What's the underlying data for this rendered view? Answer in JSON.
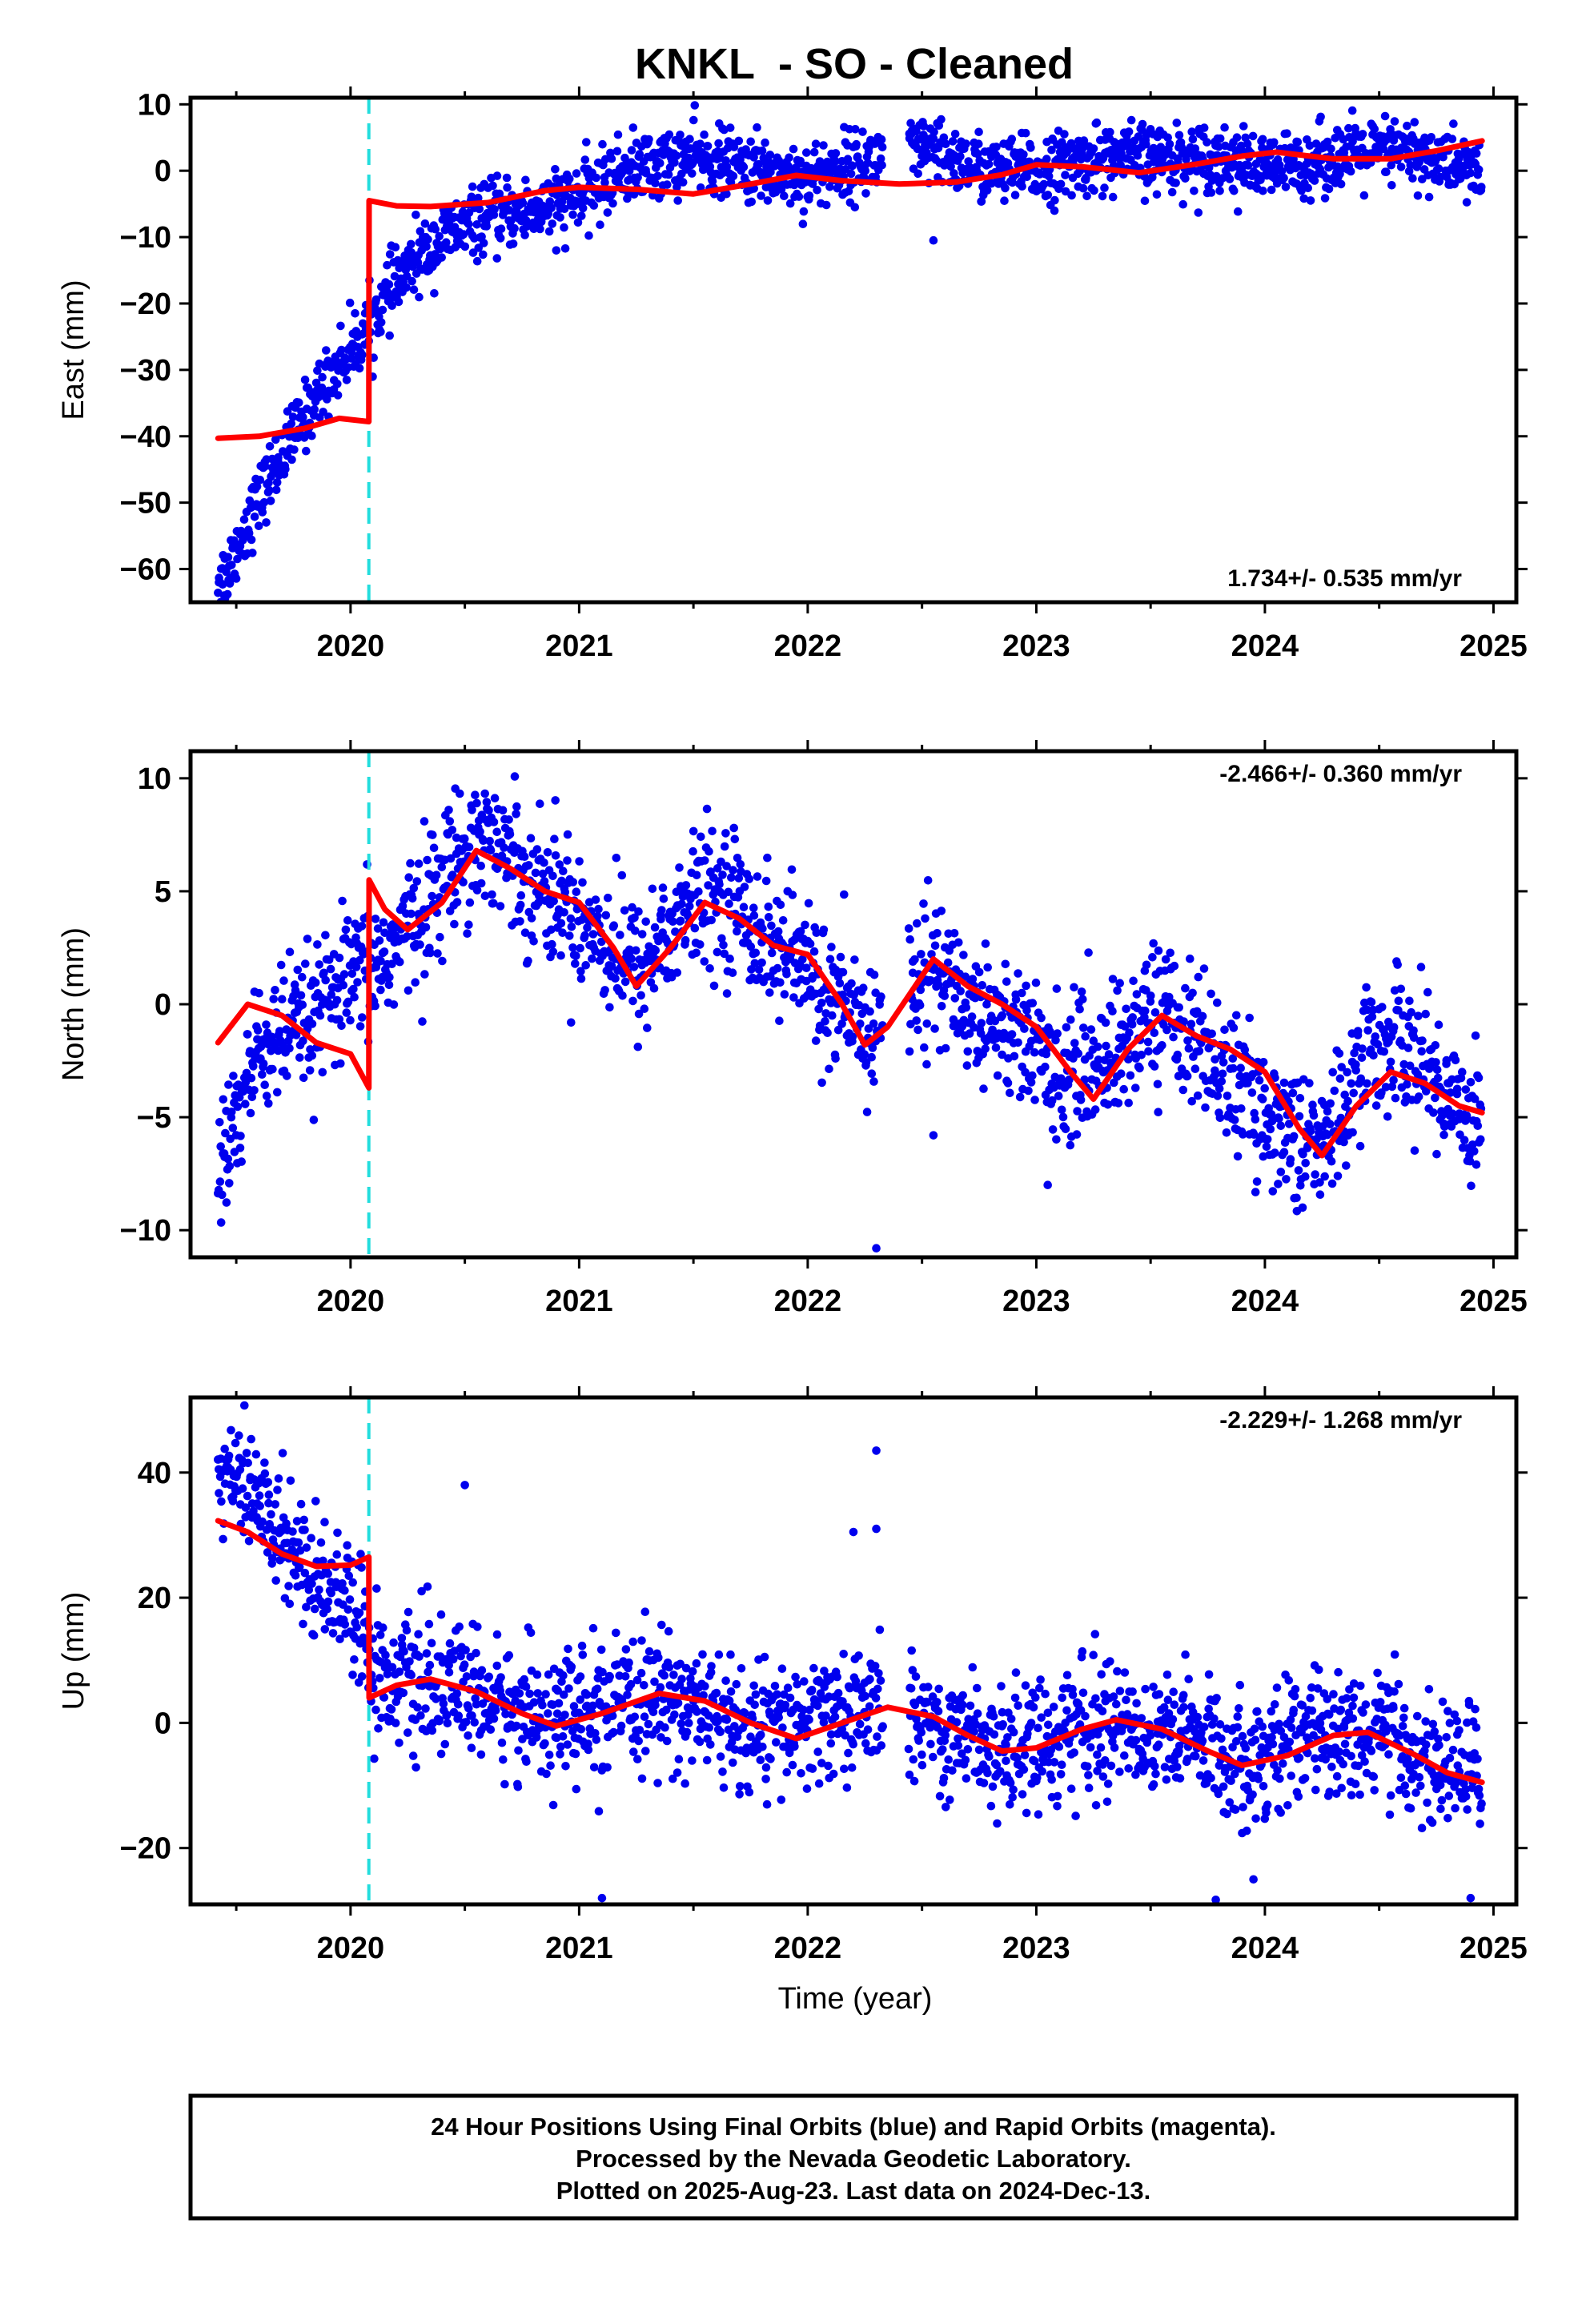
{
  "chart_data": {
    "title": "KNKL  - SO - Cleaned",
    "type": "scatter",
    "x_axis": {
      "label": "Time (year)",
      "range": [
        2019.3,
        2025.1
      ],
      "ticks": [
        "2020",
        "2021",
        "2022",
        "2023",
        "2024",
        "2025"
      ]
    },
    "event_marker": {
      "x": 2020.08,
      "color": "#22dddd",
      "style": "dashed"
    },
    "colors": {
      "data_points": "#0000ee",
      "model_fit": "#ff0000"
    },
    "panels": [
      {
        "name": "east",
        "ylabel": "East (mm)",
        "ylim": [
          -65,
          11
        ],
        "yticks": [
          10,
          0,
          -10,
          -20,
          -30,
          -40,
          -50,
          -60
        ],
        "rate_text": "1.734+/- 0.535 mm/yr",
        "rate_position": "bottom-right",
        "data_trend": [
          [
            2019.45,
            -61
          ],
          [
            2019.55,
            -53
          ],
          [
            2019.65,
            -46
          ],
          [
            2019.75,
            -40
          ],
          [
            2019.85,
            -34
          ],
          [
            2019.95,
            -29
          ],
          [
            2020.05,
            -25
          ],
          [
            2020.12,
            -21
          ],
          [
            2020.2,
            -17
          ],
          [
            2020.3,
            -13
          ],
          [
            2020.45,
            -9
          ],
          [
            2020.6,
            -7
          ],
          [
            2020.8,
            -6
          ],
          [
            2021.0,
            -4
          ],
          [
            2021.2,
            0
          ],
          [
            2021.5,
            2
          ],
          [
            2021.8,
            0
          ],
          [
            2022.0,
            -1
          ],
          [
            2022.2,
            1
          ],
          [
            2022.35,
            2
          ],
          [
            2022.5,
            3
          ],
          [
            2022.8,
            0
          ],
          [
            2023.0,
            0
          ],
          [
            2023.3,
            2
          ],
          [
            2023.6,
            2
          ],
          [
            2023.8,
            2
          ],
          [
            2024.0,
            0
          ],
          [
            2024.3,
            2
          ],
          [
            2024.6,
            3
          ],
          [
            2024.8,
            1
          ],
          [
            2024.95,
            0
          ]
        ],
        "scatter_sd": 2.5,
        "model_fit": [
          [
            2019.42,
            -40.3
          ],
          [
            2019.6,
            -40
          ],
          [
            2019.8,
            -38.8
          ],
          [
            2019.95,
            -37.3
          ],
          [
            2020.08,
            -37.8
          ],
          [
            2020.081,
            -4.5
          ],
          [
            2020.2,
            -5.3
          ],
          [
            2020.35,
            -5.4
          ],
          [
            2020.6,
            -4.8
          ],
          [
            2020.85,
            -3
          ],
          [
            2021.0,
            -2.5
          ],
          [
            2021.25,
            -2.8
          ],
          [
            2021.5,
            -3.5
          ],
          [
            2021.75,
            -2
          ],
          [
            2021.95,
            -0.7
          ],
          [
            2022.15,
            -1.5
          ],
          [
            2022.4,
            -2
          ],
          [
            2022.65,
            -1.7
          ],
          [
            2022.85,
            -0.6
          ],
          [
            2023.0,
            0.9
          ],
          [
            2023.2,
            0.6
          ],
          [
            2023.45,
            -0.3
          ],
          [
            2023.7,
            1
          ],
          [
            2023.9,
            2.2
          ],
          [
            2024.05,
            2.8
          ],
          [
            2024.3,
            1.8
          ],
          [
            2024.55,
            1.8
          ],
          [
            2024.75,
            3
          ],
          [
            2024.95,
            4.5
          ]
        ],
        "outliers": [
          [
            2022.55,
            -10.5
          ],
          [
            2020.9,
            -12
          ]
        ]
      },
      {
        "name": "north",
        "ylabel": "North (mm)",
        "ylim": [
          -11.2,
          11.2
        ],
        "yticks": [
          10,
          5,
          0,
          -5,
          -10
        ],
        "rate_text": "-2.466+/- 0.360 mm/yr",
        "rate_position": "top-right",
        "data_trend": [
          [
            2019.42,
            -8
          ],
          [
            2019.5,
            -5
          ],
          [
            2019.6,
            -2
          ],
          [
            2019.8,
            -1
          ],
          [
            2020.0,
            1
          ],
          [
            2020.15,
            2
          ],
          [
            2020.3,
            4
          ],
          [
            2020.5,
            7
          ],
          [
            2020.6,
            7.5
          ],
          [
            2020.8,
            5.5
          ],
          [
            2021.0,
            4
          ],
          [
            2021.25,
            1.5
          ],
          [
            2021.5,
            4.5
          ],
          [
            2021.65,
            5
          ],
          [
            2021.8,
            3
          ],
          [
            2022.0,
            1.5
          ],
          [
            2022.2,
            -1
          ],
          [
            2022.35,
            -1
          ],
          [
            2022.5,
            2
          ],
          [
            2022.7,
            0
          ],
          [
            2022.9,
            -1
          ],
          [
            2023.1,
            -3
          ],
          [
            2023.3,
            -2.5
          ],
          [
            2023.55,
            0
          ],
          [
            2023.7,
            -1.5
          ],
          [
            2023.9,
            -4
          ],
          [
            2024.1,
            -5.5
          ],
          [
            2024.25,
            -6.5
          ],
          [
            2024.45,
            -2
          ],
          [
            2024.6,
            -1.5
          ],
          [
            2024.8,
            -4
          ],
          [
            2024.95,
            -5
          ]
        ],
        "scatter_sd": 1.5,
        "model_fit": [
          [
            2019.42,
            -1.7
          ],
          [
            2019.55,
            0
          ],
          [
            2019.7,
            -0.5
          ],
          [
            2019.85,
            -1.7
          ],
          [
            2020.0,
            -2.2
          ],
          [
            2020.08,
            -3.7
          ],
          [
            2020.081,
            5.5
          ],
          [
            2020.15,
            4.2
          ],
          [
            2020.25,
            3.3
          ],
          [
            2020.4,
            4.5
          ],
          [
            2020.55,
            6.8
          ],
          [
            2020.7,
            6
          ],
          [
            2020.85,
            5
          ],
          [
            2021.0,
            4.5
          ],
          [
            2021.15,
            2.5
          ],
          [
            2021.25,
            0.8
          ],
          [
            2021.4,
            2.5
          ],
          [
            2021.55,
            4.5
          ],
          [
            2021.7,
            3.8
          ],
          [
            2021.85,
            2.6
          ],
          [
            2022.0,
            2.2
          ],
          [
            2022.15,
            0
          ],
          [
            2022.25,
            -1.8
          ],
          [
            2022.35,
            -1
          ],
          [
            2022.55,
            2
          ],
          [
            2022.7,
            0.8
          ],
          [
            2022.85,
            0
          ],
          [
            2023.0,
            -1
          ],
          [
            2023.15,
            -3
          ],
          [
            2023.25,
            -4.2
          ],
          [
            2023.4,
            -2
          ],
          [
            2023.55,
            -0.5
          ],
          [
            2023.7,
            -1.4
          ],
          [
            2023.85,
            -2
          ],
          [
            2024.0,
            -3
          ],
          [
            2024.15,
            -5.5
          ],
          [
            2024.25,
            -6.7
          ],
          [
            2024.4,
            -4.5
          ],
          [
            2024.55,
            -3
          ],
          [
            2024.7,
            -3.5
          ],
          [
            2024.85,
            -4.5
          ],
          [
            2024.95,
            -4.8
          ]
        ],
        "outliers": [
          [
            2022.3,
            -10.8
          ],
          [
            2022.55,
            -5.8
          ],
          [
            2023.05,
            -8
          ]
        ]
      },
      {
        "name": "up",
        "ylabel": "Up (mm)",
        "ylim": [
          -29,
          52
        ],
        "yticks": [
          40,
          20,
          0,
          -20
        ],
        "rate_text": "-2.229+/- 1.268 mm/yr",
        "rate_position": "top-right",
        "data_trend": [
          [
            2019.45,
            40
          ],
          [
            2019.6,
            35
          ],
          [
            2019.75,
            28
          ],
          [
            2019.9,
            22
          ],
          [
            2020.05,
            18
          ],
          [
            2020.1,
            8
          ],
          [
            2020.3,
            6
          ],
          [
            2020.5,
            5
          ],
          [
            2020.7,
            2
          ],
          [
            2020.9,
            1
          ],
          [
            2021.1,
            1
          ],
          [
            2021.3,
            4
          ],
          [
            2021.5,
            3
          ],
          [
            2021.7,
            -1
          ],
          [
            2021.9,
            -1
          ],
          [
            2022.1,
            1
          ],
          [
            2022.3,
            3
          ],
          [
            2022.5,
            0
          ],
          [
            2022.7,
            -2
          ],
          [
            2022.9,
            -4
          ],
          [
            2023.1,
            -2
          ],
          [
            2023.3,
            0
          ],
          [
            2023.5,
            -1
          ],
          [
            2023.7,
            -3
          ],
          [
            2023.9,
            -6
          ],
          [
            2024.1,
            -3
          ],
          [
            2024.3,
            -1
          ],
          [
            2024.5,
            -2
          ],
          [
            2024.7,
            -6
          ],
          [
            2024.95,
            -8
          ]
        ],
        "scatter_sd": 5,
        "model_fit": [
          [
            2019.42,
            32.3
          ],
          [
            2019.55,
            30.5
          ],
          [
            2019.7,
            27
          ],
          [
            2019.85,
            25
          ],
          [
            2020.0,
            25.2
          ],
          [
            2020.08,
            26.5
          ],
          [
            2020.081,
            4
          ],
          [
            2020.2,
            6
          ],
          [
            2020.35,
            7
          ],
          [
            2020.55,
            5
          ],
          [
            2020.75,
            1.5
          ],
          [
            2020.9,
            -0.5
          ],
          [
            2021.1,
            1.5
          ],
          [
            2021.35,
            4.7
          ],
          [
            2021.55,
            3.5
          ],
          [
            2021.75,
            0
          ],
          [
            2021.95,
            -2.5
          ],
          [
            2022.15,
            0
          ],
          [
            2022.35,
            2.5
          ],
          [
            2022.55,
            1
          ],
          [
            2022.7,
            -2
          ],
          [
            2022.85,
            -4.5
          ],
          [
            2023.0,
            -4
          ],
          [
            2023.2,
            -1
          ],
          [
            2023.35,
            0.5
          ],
          [
            2023.55,
            -1
          ],
          [
            2023.75,
            -4.5
          ],
          [
            2023.9,
            -6.8
          ],
          [
            2024.1,
            -5.2
          ],
          [
            2024.3,
            -2
          ],
          [
            2024.45,
            -1.5
          ],
          [
            2024.65,
            -5
          ],
          [
            2024.8,
            -8
          ],
          [
            2024.95,
            -9.5
          ]
        ],
        "outliers": [
          [
            2020.5,
            38
          ],
          [
            2022.3,
            43.5
          ],
          [
            2022.3,
            31
          ],
          [
            2022.2,
            30.5
          ],
          [
            2021.1,
            -28
          ],
          [
            2024.9,
            -28
          ],
          [
            2023.95,
            -25
          ]
        ]
      }
    ]
  },
  "caption": {
    "lines": [
      "24 Hour Positions Using Final Orbits (blue) and Rapid Orbits (magenta).",
      "Processed by the Nevada Geodetic Laboratory.",
      "Plotted on 2025-Aug-23. Last data on 2024-Dec-13."
    ]
  }
}
